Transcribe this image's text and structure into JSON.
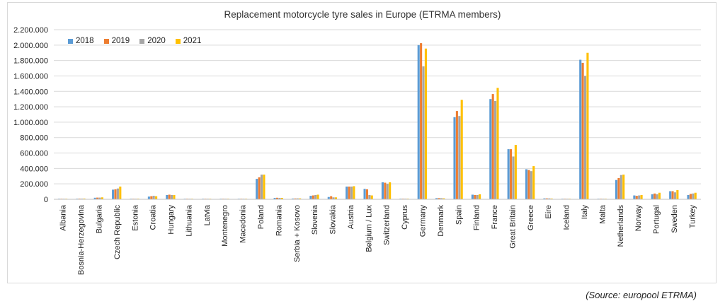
{
  "source": "(Source: europool ETRMA)",
  "colors": {
    "2018": "#5b9bd5",
    "2019": "#ed7d31",
    "2020": "#a5a5a5",
    "2021": "#ffc000"
  },
  "chart_data": {
    "type": "bar",
    "title": "Replacement motorcycle tyre sales in Europe (ETRMA members)",
    "xlabel": "",
    "ylabel": "",
    "ylim": [
      0,
      2200000
    ],
    "yticks": [
      0,
      200000,
      400000,
      600000,
      800000,
      1000000,
      1200000,
      1400000,
      1600000,
      1800000,
      2000000,
      2200000
    ],
    "ytick_labels": [
      "0",
      "200.000",
      "400.000",
      "600.000",
      "800.000",
      "1.000.000",
      "1.200.000",
      "1.400.000",
      "1.600.000",
      "1.800.000",
      "2.000.000",
      "2.200.000"
    ],
    "grid": true,
    "legend_position": "top-left",
    "categories": [
      "Albania",
      "Bosnia-Herzegovina",
      "Bulgaria",
      "Czech Republic",
      "Estonia",
      "Croatia",
      "Hungary",
      "Lithuania",
      "Latvia",
      "Montenegro",
      "Macedonia",
      "Poland",
      "Romania",
      "Serbia + Kosovo",
      "Slovenia",
      "Slovakia",
      "Austria",
      "Belgium / Lux",
      "Switzerland",
      "Cyprus",
      "Germany",
      "Denmark",
      "Spain",
      "Finland",
      "France",
      "Great Britain",
      "Greece",
      "Eire",
      "Iceland",
      "Italy",
      "Malta",
      "Netherlands",
      "Norway",
      "Portugal",
      "Sweden",
      "Turkey"
    ],
    "series": [
      {
        "name": "2018",
        "values": [
          5000,
          8000,
          20000,
          125000,
          6000,
          35000,
          55000,
          5000,
          3000,
          1000,
          2000,
          265000,
          18000,
          10000,
          45000,
          30000,
          165000,
          135000,
          220000,
          8000,
          2000000,
          15000,
          1065000,
          60000,
          1300000,
          650000,
          390000,
          12000,
          1000,
          1810000,
          1000,
          250000,
          50000,
          65000,
          105000,
          55000
        ]
      },
      {
        "name": "2019",
        "values": [
          5000,
          9000,
          22000,
          130000,
          7000,
          40000,
          60000,
          5000,
          3000,
          1000,
          2000,
          285000,
          20000,
          11000,
          50000,
          40000,
          165000,
          130000,
          215000,
          8000,
          2025000,
          16000,
          1145000,
          55000,
          1365000,
          650000,
          380000,
          12000,
          1000,
          1770000,
          1000,
          275000,
          45000,
          75000,
          105000,
          70000
        ]
      },
      {
        "name": "2020",
        "values": [
          5000,
          9000,
          22000,
          140000,
          7000,
          45000,
          55000,
          5000,
          3000,
          1000,
          2000,
          320000,
          18000,
          12000,
          55000,
          25000,
          165000,
          55000,
          200000,
          8000,
          1725000,
          15000,
          1080000,
          55000,
          1275000,
          555000,
          365000,
          12000,
          1000,
          1600000,
          1000,
          315000,
          50000,
          65000,
          90000,
          75000
        ]
      },
      {
        "name": "2021",
        "values": [
          5000,
          10000,
          25000,
          165000,
          8000,
          40000,
          55000,
          5000,
          3000,
          1000,
          2000,
          320000,
          18000,
          12000,
          60000,
          25000,
          170000,
          50000,
          220000,
          8000,
          1955000,
          13000,
          1290000,
          65000,
          1445000,
          705000,
          430000,
          10000,
          1000,
          1900000,
          1000,
          320000,
          55000,
          85000,
          120000,
          85000
        ]
      }
    ]
  }
}
